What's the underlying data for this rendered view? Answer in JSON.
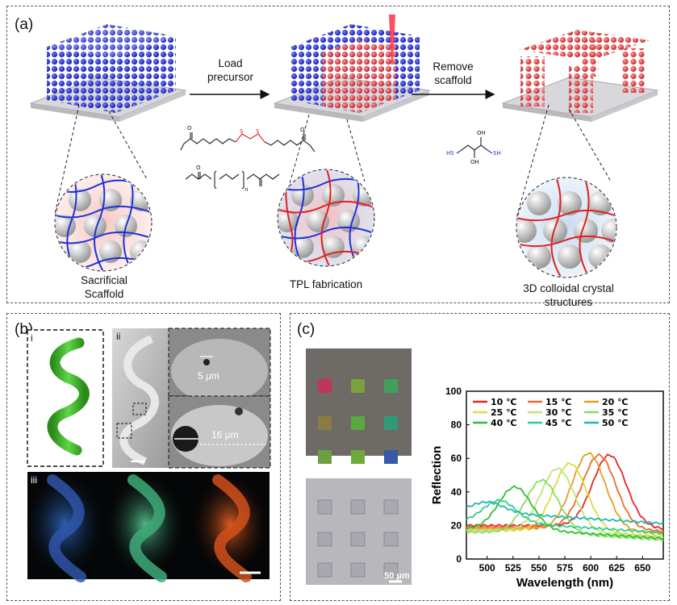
{
  "panel_a": {
    "label": "(a)",
    "arrow1": {
      "line1": "Load",
      "line2": "precursor"
    },
    "arrow2": {
      "line1": "Remove",
      "line2": "scaffold"
    },
    "caption_left": {
      "line1": "Sacrificial",
      "line2": "Scaffold"
    },
    "caption_mid": "TPL fabrication",
    "caption_right": {
      "line1": "3D colloidal crystal",
      "line2": "structures"
    },
    "chem1": {
      "atom_o": "O",
      "atom_s": "S"
    },
    "chem2": {
      "atom_o": "O",
      "subscript": "n"
    },
    "chem3": {
      "hs": "HS",
      "sh": "SH",
      "oh": "OH"
    }
  },
  "panel_b": {
    "label": "(b)",
    "sub_i": "i",
    "sub_ii": "ii",
    "sub_iii": "iii",
    "scale1": "5 μm",
    "scale2": "16 μm"
  },
  "panel_c": {
    "label": "(c)",
    "scale_label": "50 μm",
    "colors": {
      "axis": "#000000"
    }
  },
  "chart_data": {
    "type": "line",
    "xlabel": "Wavelength (nm)",
    "ylabel": "Reflection",
    "xlim": [
      480,
      670
    ],
    "ylim": [
      0,
      100
    ],
    "xticks": [
      500,
      525,
      550,
      575,
      600,
      625,
      650
    ],
    "yticks": [
      0,
      20,
      40,
      60,
      80,
      100
    ],
    "legend_position": "top",
    "series": [
      {
        "name": "10 ℃",
        "color": "#e8252a",
        "peak": 618,
        "peak_value": 62,
        "base": 20
      },
      {
        "name": "15 ℃",
        "color": "#f06a28",
        "peak": 608,
        "peak_value": 62,
        "base": 19
      },
      {
        "name": "20 ℃",
        "color": "#e0a020",
        "peak": 598,
        "peak_value": 63,
        "base": 18
      },
      {
        "name": "25 ℃",
        "color": "#d9df3c",
        "peak": 580,
        "peak_value": 57,
        "base": 17
      },
      {
        "name": "30 ℃",
        "color": "#c1e27a",
        "peak": 568,
        "peak_value": 54,
        "base": 17
      },
      {
        "name": "35 ℃",
        "color": "#86de62",
        "peak": 553,
        "peak_value": 47,
        "base": 16
      },
      {
        "name": "40 ℃",
        "color": "#2fc02f",
        "peak": 527,
        "peak_value": 43,
        "base": 18
      },
      {
        "name": "45 ℃",
        "color": "#2fcf8a",
        "peak": 512,
        "peak_value": 35,
        "base": 22
      },
      {
        "name": "50 ℃",
        "color": "#21b8b0",
        "peak": 500,
        "peak_value": 34,
        "base": 28
      }
    ]
  }
}
